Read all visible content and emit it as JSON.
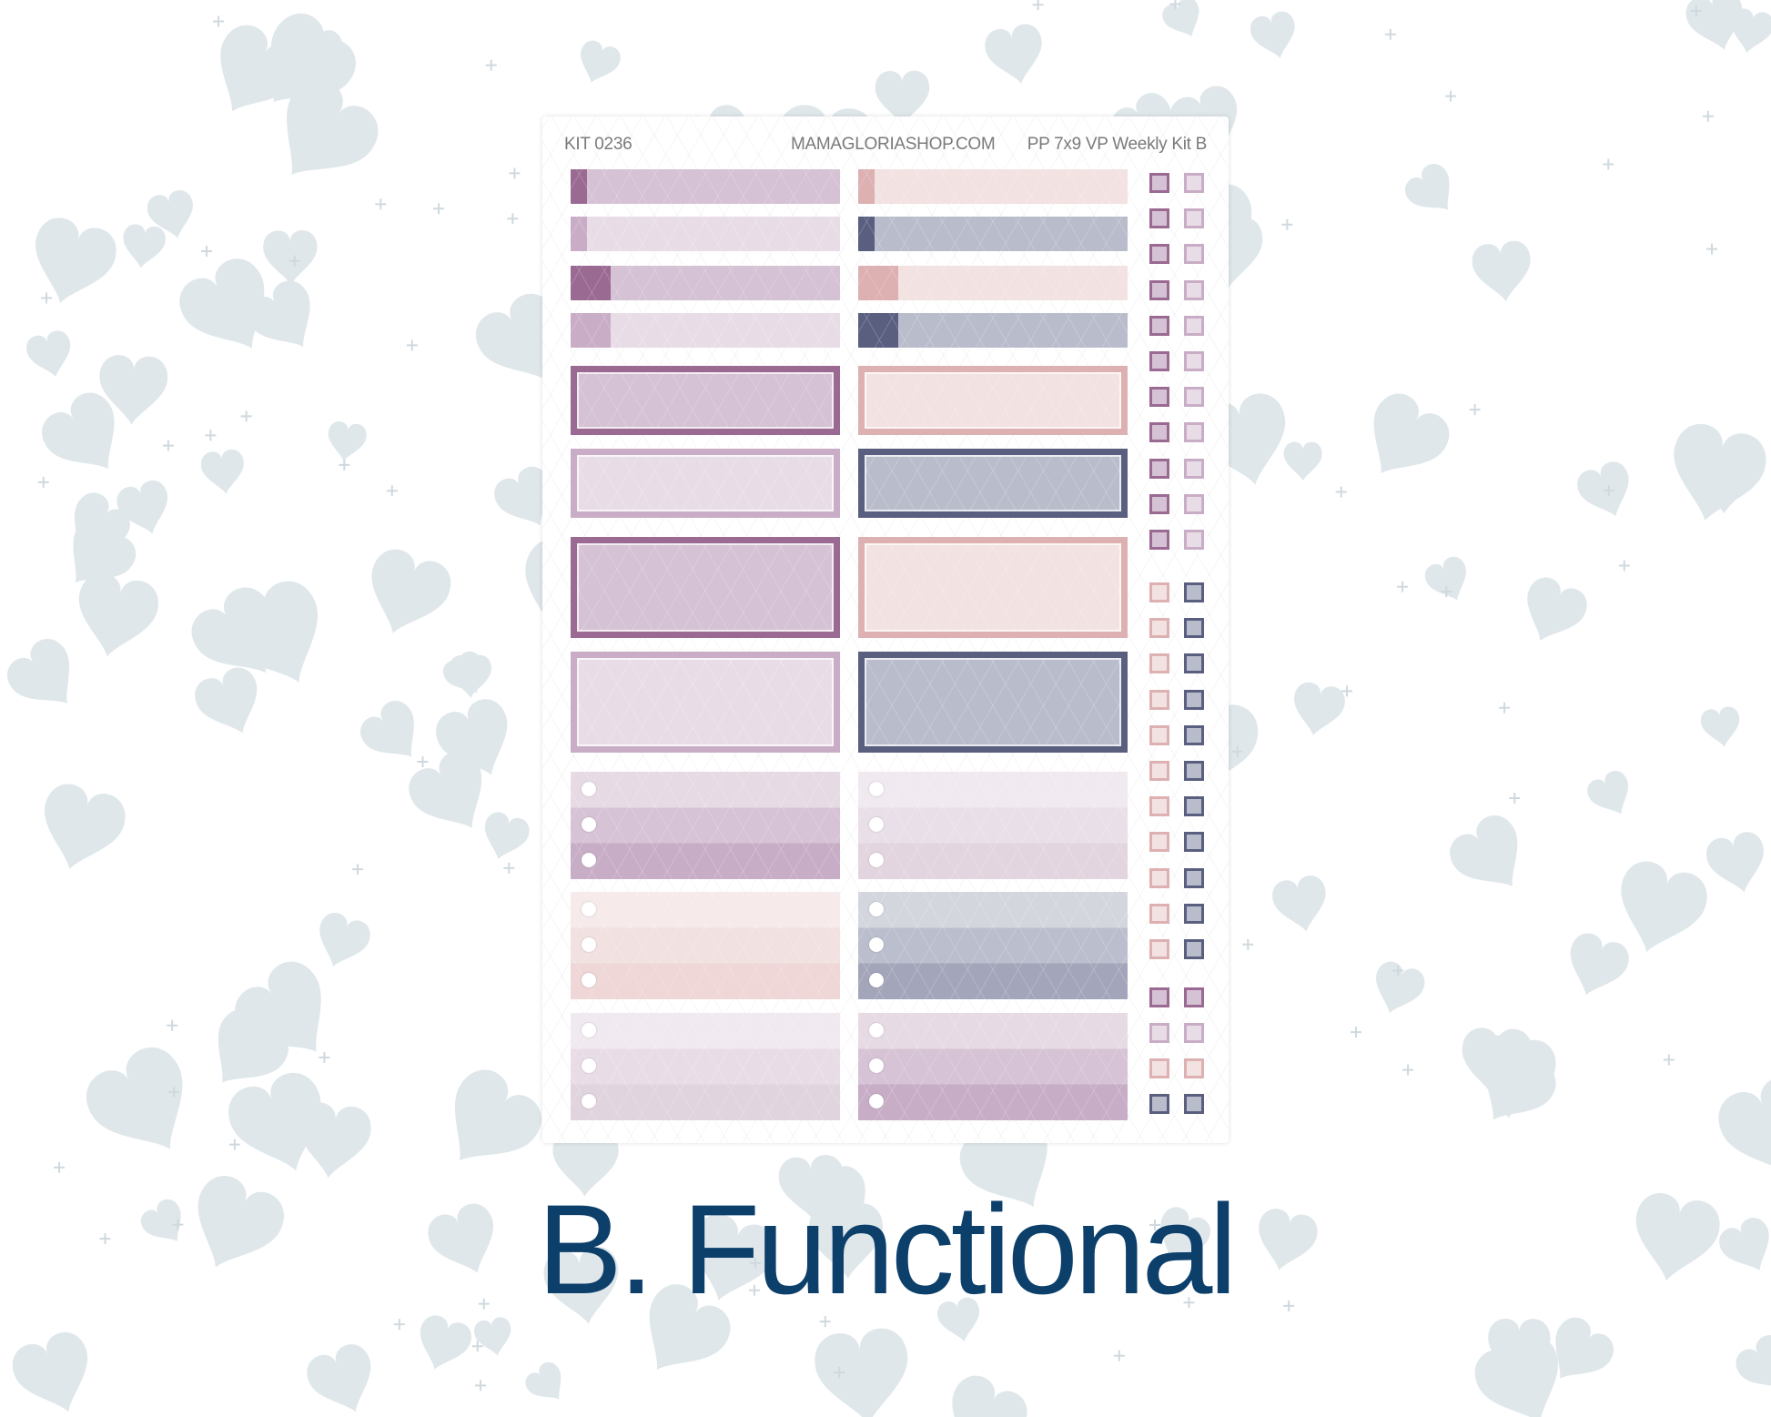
{
  "sheet": {
    "kit_label": "KIT 0236",
    "shop_label": "MAMAGLORIASHOP.COM",
    "kit_name": "PP 7x9 VP Weekly Kit B"
  },
  "title": "B. Functional",
  "colors": {
    "background_heart": "#dfe7eb",
    "title": "#0d3f6b",
    "plum_dark": "#9a6a92",
    "plum_medium": "#d5c2d4",
    "lilac_tab": "#c9adc6",
    "lilac_light": "#e8dde7",
    "pink_dark": "#ddb0b2",
    "pink_light": "#f3e2e2",
    "navy_dark": "#5a5f80",
    "navy_light": "#b9bccb"
  },
  "icons": [
    "heart-icon",
    "plus-icon",
    "checkbox-icon"
  ]
}
